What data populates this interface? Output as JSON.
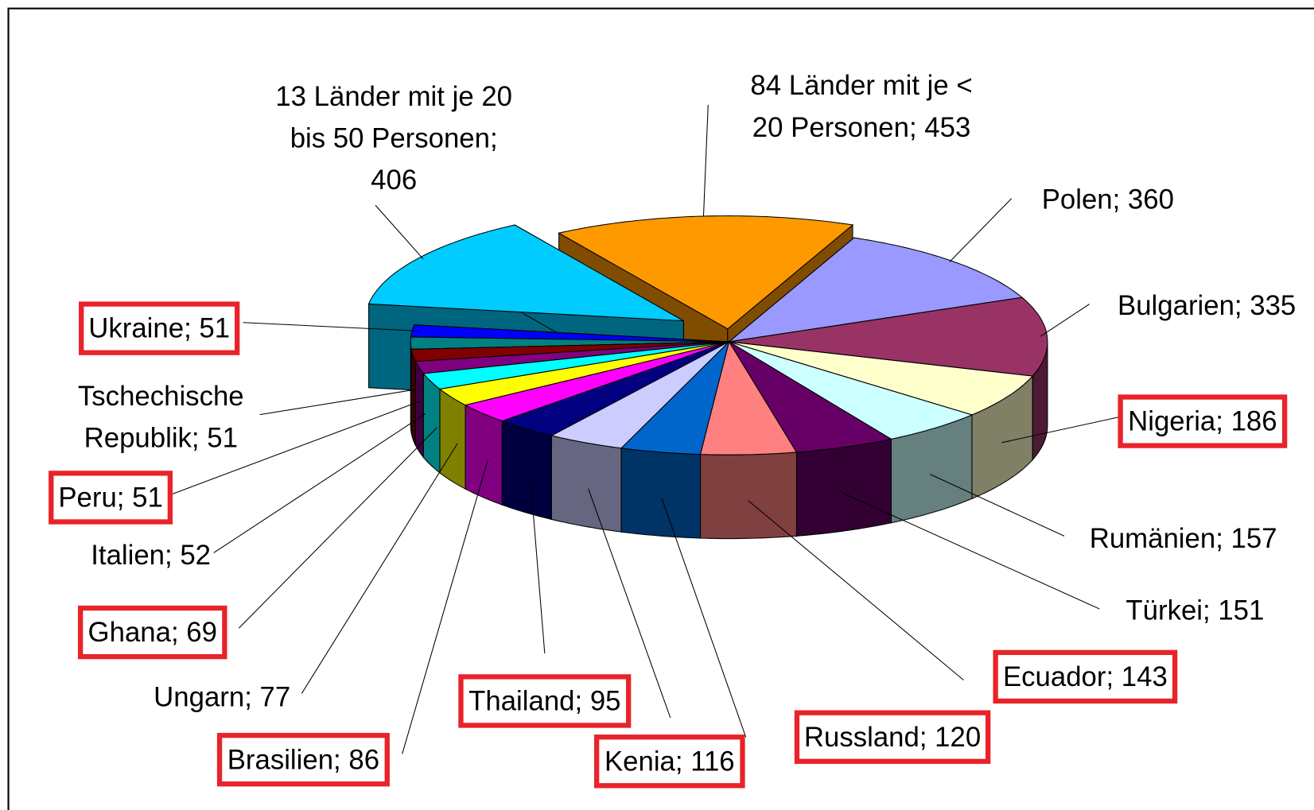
{
  "chart_data": {
    "type": "pie3d",
    "values": [
      453,
      360,
      335,
      186,
      157,
      151,
      143,
      120,
      116,
      95,
      86,
      77,
      69,
      52,
      51,
      51,
      51,
      406
    ],
    "value_labels": [
      "84 Länder mit je < 20 Personen; 453",
      "Polen; 360",
      "Bulgarien; 335",
      "Nigeria; 186",
      "Rumänien; 157",
      "Türkei; 151",
      "Ecuador; 143",
      "Russland; 120",
      "Kenia; 116",
      "Thailand; 95",
      "Brasilien; 86",
      "Ungarn; 77",
      "Ghana; 69",
      "Italien; 52",
      "Peru; 51",
      "Tschechische Republik; 51",
      "Ukraine; 51",
      "13 Länder mit je 20 bis 50 Personen; 406"
    ],
    "colors": [
      "#ff9900",
      "#9999ff",
      "#993366",
      "#ffffcc",
      "#ccffff",
      "#660066",
      "#ff8080",
      "#0066cc",
      "#ccccff",
      "#000080",
      "#ff00ff",
      "#ffff00",
      "#00ffff",
      "#800080",
      "#800000",
      "#008080",
      "#0000ff",
      "#00ccff"
    ],
    "exploded": [
      0,
      17
    ],
    "highlighted": [
      3,
      6,
      7,
      8,
      9,
      10,
      12,
      14,
      16
    ],
    "highlight_color": "#e8232a"
  }
}
